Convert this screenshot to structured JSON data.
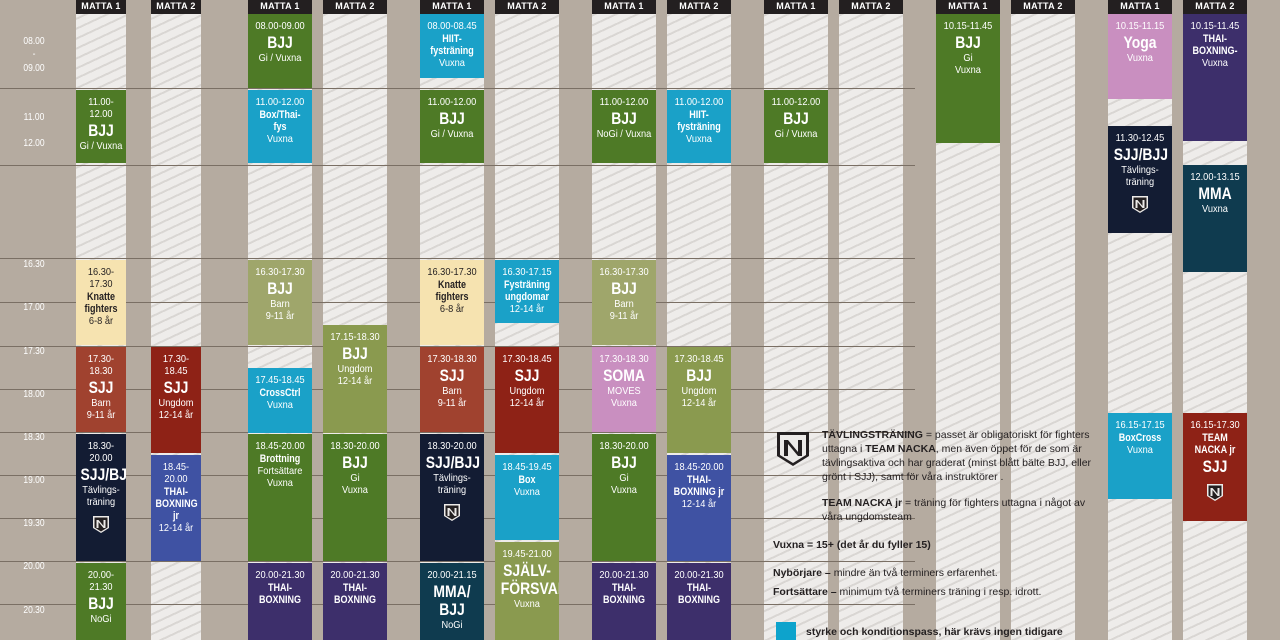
{
  "mat_headers": [
    "MATTA 1",
    "MATTA 2",
    "MATTA 1",
    "MATTA 2",
    "MATTA 1",
    "MATTA 2",
    "MATTA 1",
    "MATTA 2",
    "MATTA 1",
    "MATTA 2",
    "MATTA 1",
    "MATTA 2",
    "MATTA 1",
    "MATTA 2"
  ],
  "time_labels": [
    "08.00",
    "-",
    "09.00",
    "11.00",
    "12.00",
    "16.30",
    "17.00",
    "17.30",
    "18.00",
    "18.30",
    "19.00",
    "19.30",
    "20.00",
    "20.30"
  ],
  "colors": {
    "green": "#4e7a26",
    "olive": "#8a9a4f",
    "sage": "#9fa66b",
    "cyan": "#1aa1c8",
    "red": "#8e2216",
    "rust": "#a0422f",
    "navy": "#131c33",
    "purple": "#3d2f6b",
    "violet": "#4a3f86",
    "pink": "#c98fc0",
    "cream": "#f6e3b0",
    "teal": "#0f3b4f",
    "blue": "#3f52a3"
  },
  "blocks": [
    {
      "time": "11.00-12.00",
      "title": "BJJ",
      "sub": "Gi / Vuxna",
      "color": "green"
    },
    {
      "time": "16.30-17.30",
      "title": "Knatte\nfighters",
      "sub": "6-8 år",
      "color": "cream",
      "small": true,
      "light": true
    },
    {
      "time": "17.30-18.30",
      "title": "SJJ",
      "sub": "Barn\n9-11 år",
      "color": "rust"
    },
    {
      "time": "18.30-20.00",
      "title": "SJJ/BJJ",
      "sub": "Tävlings-\nträning",
      "color": "navy",
      "logo": true
    },
    {
      "time": "20.00-21.30",
      "title": "BJJ",
      "sub": "NoGi",
      "color": "green"
    },
    {
      "time": "17.30-18.45",
      "title": "SJJ",
      "sub": "Ungdom\n12-14 år",
      "color": "red"
    },
    {
      "time": "18.45-20.00",
      "title": "THAI-\nBOXNING jr",
      "sub": "12-14 år",
      "color": "blue",
      "small": true
    },
    {
      "time": "08.00-09.00",
      "title": "BJJ",
      "sub": "Gi / Vuxna",
      "color": "green"
    },
    {
      "time": "11.00-12.00",
      "title": "Box/Thai-fys",
      "sub": "Vuxna",
      "color": "cyan",
      "small": true
    },
    {
      "time": "16.30-17.30",
      "title": "BJJ",
      "sub": "Barn\n9-11 år",
      "color": "sage"
    },
    {
      "time": "17.45-18.45",
      "title": "CrossCtrl",
      "sub": "Vuxna",
      "color": "cyan",
      "small": true
    },
    {
      "time": "18.45-20.00",
      "title": "Brottning",
      "sub": "Fortsättare\nVuxna",
      "color": "green",
      "small": true
    },
    {
      "time": "20.00-21.30",
      "title": "THAI-\nBOXNING",
      "sub": "",
      "color": "purple",
      "small": true
    },
    {
      "time": "17.15-18.30",
      "title": "BJJ",
      "sub": "Ungdom\n12-14 år",
      "color": "olive"
    },
    {
      "time": "18.30-20.00",
      "title": "BJJ",
      "sub": "Gi\nVuxna",
      "color": "green"
    },
    {
      "time": "20.00-21.30",
      "title": "THAI-\nBOXNING",
      "sub": "",
      "color": "purple",
      "small": true
    },
    {
      "time": "08.00-08.45",
      "title": "HIIT-\nfysträning",
      "sub": "Vuxna",
      "color": "cyan",
      "small": true
    },
    {
      "time": "11.00-12.00",
      "title": "BJJ",
      "sub": "Gi / Vuxna",
      "color": "green"
    },
    {
      "time": "16.30-17.30",
      "title": "Knatte\nfighters",
      "sub": "6-8 år",
      "color": "cream",
      "small": true,
      "light": true
    },
    {
      "time": "17.30-18.30",
      "title": "SJJ",
      "sub": "Barn\n9-11 år",
      "color": "rust"
    },
    {
      "time": "18.30-20.00",
      "title": "SJJ/BJJ",
      "sub": "Tävlings-\nträning",
      "color": "navy",
      "logo": true
    },
    {
      "time": "20.00-21.15",
      "title": "MMA/\nBJJ",
      "sub": "NoGi",
      "color": "teal"
    },
    {
      "time": "16.30-17.15",
      "title": "Fysträning\nungdomar",
      "sub": "12-14 år",
      "color": "cyan",
      "small": true
    },
    {
      "time": "17.30-18.45",
      "title": "SJJ",
      "sub": "Ungdom\n12-14 år",
      "color": "red"
    },
    {
      "time": "18.45-19.45",
      "title": "Box",
      "sub": "Vuxna",
      "color": "cyan",
      "small": true
    },
    {
      "time": "19.45-21.00",
      "title": "SJÄLV-\nFÖRSVAR",
      "sub": "Vuxna",
      "color": "olive"
    },
    {
      "time": "11.00-12.00",
      "title": "BJJ",
      "sub": "NoGi / Vuxna",
      "color": "green"
    },
    {
      "time": "16.30-17.30",
      "title": "BJJ",
      "sub": "Barn\n9-11 år",
      "color": "sage"
    },
    {
      "time": "17.30-18.30",
      "title": "SOMA",
      "sub": "MOVES\nVuxna",
      "color": "pink"
    },
    {
      "time": "18.30-20.00",
      "title": "BJJ",
      "sub": "Gi\nVuxna",
      "color": "green"
    },
    {
      "time": "20.00-21.30",
      "title": "THAI-\nBOXNING",
      "sub": "",
      "color": "purple",
      "small": true
    },
    {
      "time": "11.00-12.00",
      "title": "HIIT-\nfysträning",
      "sub": "Vuxna",
      "color": "cyan",
      "small": true
    },
    {
      "time": "17.30-18.45",
      "title": "BJJ",
      "sub": "Ungdom\n12-14 år",
      "color": "olive"
    },
    {
      "time": "18.45-20.00",
      "title": "THAI-\nBOXNING jr",
      "sub": "12-14 år",
      "color": "blue",
      "small": true
    },
    {
      "time": "20.00-21.30",
      "title": "THAI-\nBOXNING",
      "sub": "",
      "color": "purple",
      "small": true
    },
    {
      "time": "11.00-12.00",
      "title": "BJJ",
      "sub": "Gi / Vuxna",
      "color": "green"
    },
    {
      "time": "10.15-11.45",
      "title": "BJJ",
      "sub": "Gi\nVuxna",
      "color": "green"
    },
    {
      "time": "10.15-11.15",
      "title": "Yoga",
      "sub": "Vuxna",
      "color": "pink"
    },
    {
      "time": "11.30-12.45",
      "title": "SJJ/BJJ",
      "sub": "Tävlings-\nträning",
      "color": "navy",
      "logo": true
    },
    {
      "time": "16.15-17.15",
      "title": "BoxCross",
      "sub": "Vuxna",
      "color": "cyan",
      "small": true
    },
    {
      "time": "10.15-11.45",
      "title": "THAI-\nBOXNING-",
      "sub": "Vuxna",
      "color": "purple",
      "small": true
    },
    {
      "time": "12.00-13.15",
      "title": "MMA",
      "sub": "Vuxna",
      "color": "teal"
    },
    {
      "time": "16.15-17.30",
      "title": "TEAM\nNACKA jr",
      "sub": "",
      "color": "red",
      "small": true,
      "extra": "SJJ",
      "logo": true
    }
  ],
  "legend": {
    "tavling_term": "TÄVLINGSTRÄNING",
    "tavling_text": " = passet är obligatoriskt för fighters uttagna i ",
    "team_nacka": "TEAM NACKA",
    "tavling_text2": ", men även öppet för de som är tävlingsaktiva och har graderat (minst blått bälte BJJ, eller grönt i SJJ), samt för våra instruktörer .",
    "teamjr_term": "TEAM NACKA jr",
    "teamjr_text": " = träning för fighters uttagna i något av våra ungdomsteam",
    "vuxna_line": "Vuxna = 15+ (det år du fyller 15)",
    "nyborjare_term": "Nybörjare –",
    "nyborjare_text": " mindre än två terminers erfarenhet.",
    "fortsattare_term": "Fortsättare –",
    "fortsattare_text": " minimum två terminers träning i resp. idrott.",
    "cyan_text": "styrke och konditionspass, här krävs ingen tidigare erfarenhet."
  }
}
